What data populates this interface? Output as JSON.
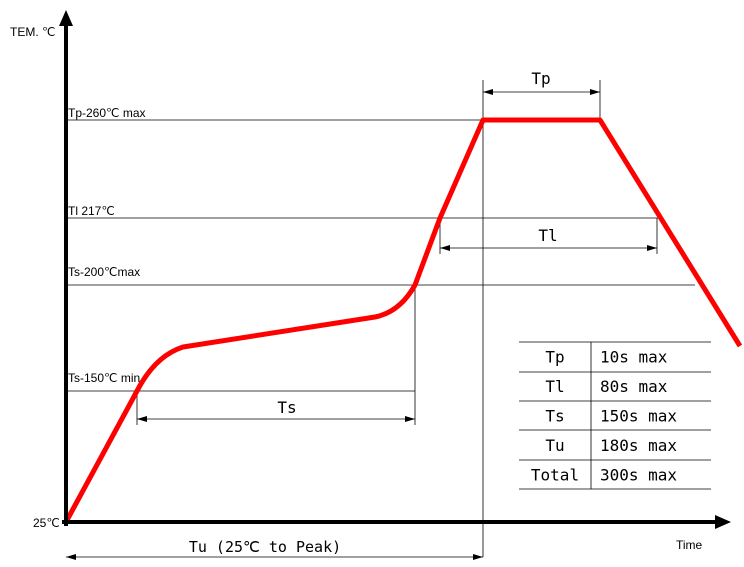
{
  "axes": {
    "y_label": "TEM. ℃",
    "x_label": "Time",
    "origin_label": "25℃"
  },
  "levels": {
    "tp": "Tp-260℃ max",
    "tl": "Tl 217℃",
    "ts_max": "Ts-200℃max",
    "ts_min": "Ts-150℃ min"
  },
  "dimensions": {
    "tp": "Tp",
    "tl": "Tl",
    "ts": "Ts",
    "tu": "Tu (25℃ to Peak)"
  },
  "table": [
    {
      "param": "Tp",
      "value": "10s max"
    },
    {
      "param": "Tl",
      "value": "80s max"
    },
    {
      "param": "Ts",
      "value": "150s max"
    },
    {
      "param": "Tu",
      "value": "180s max"
    },
    {
      "param": "Total",
      "value": "300s max"
    }
  ],
  "colors": {
    "profile": "#ff0000",
    "axes": "#000000",
    "guides": "#000000"
  }
}
